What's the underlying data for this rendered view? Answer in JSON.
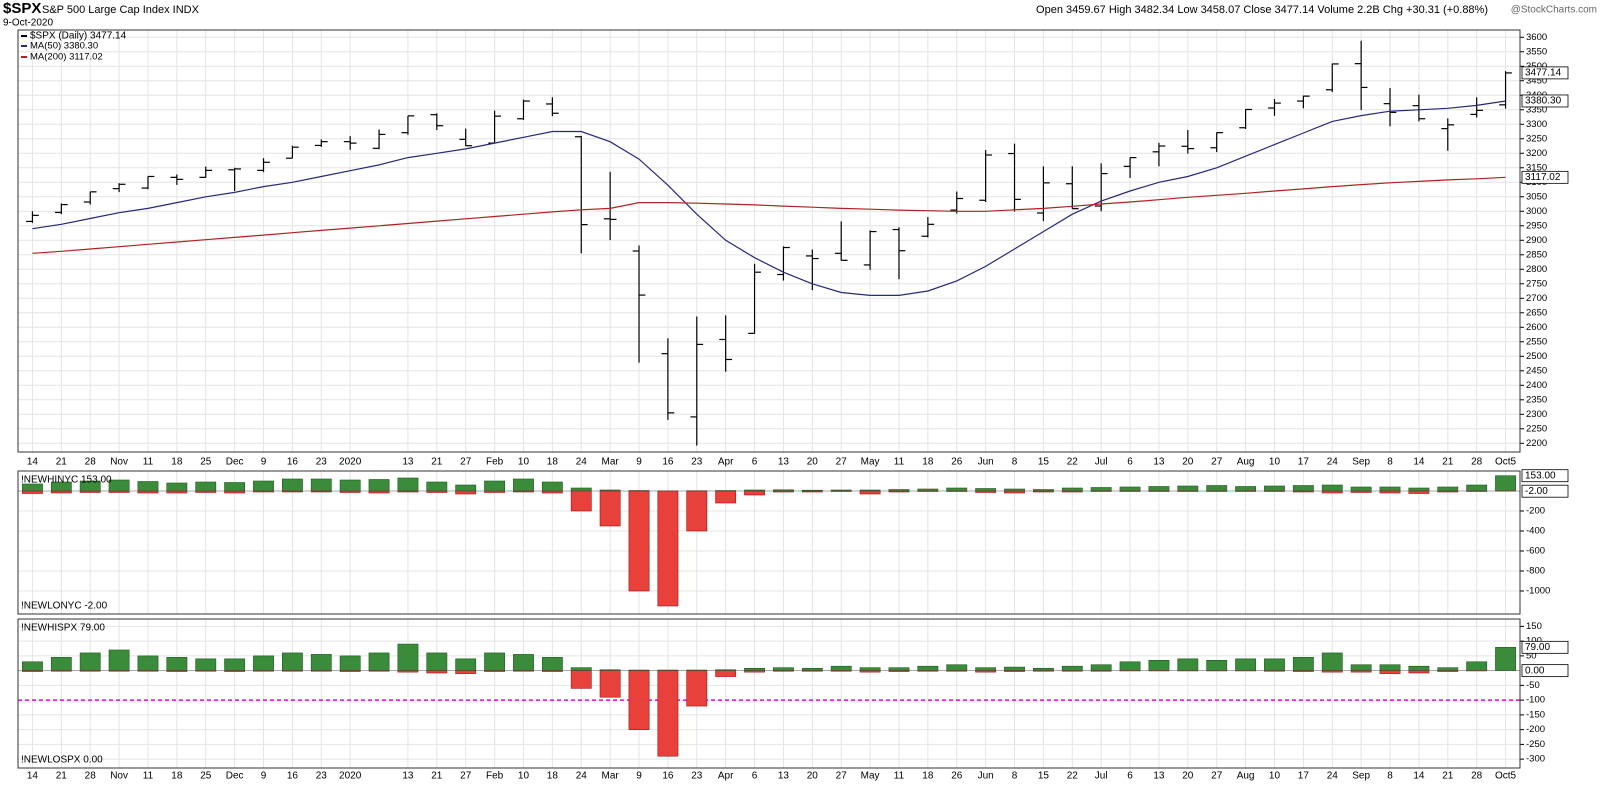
{
  "header": {
    "symbol": "$SPX",
    "title": "S&P 500 Large Cap Index INDX",
    "date": "9-Oct-2020",
    "quote": "Open 3459.67 High 3482.34 Low 3458.07 Close 3477.14 Volume 2.2B Chg +30.31 (+0.88%)",
    "brand": "@StockCharts.com"
  },
  "chart_data": [
    {
      "type": "ohlc",
      "price_name": "$SPX (Daily) 3477.14",
      "color": "#000000",
      "categories": [
        "14",
        "21",
        "28",
        "Nov",
        "11",
        "18",
        "25",
        "Dec",
        "9",
        "16",
        "23",
        "2020",
        null,
        "13",
        "21",
        "27",
        "Feb",
        "10",
        "18",
        "24",
        "Mar",
        "9",
        "16",
        "23",
        "Apr",
        "6",
        "13",
        "20",
        "27",
        "May",
        "11",
        "18",
        "26",
        "Jun",
        "8",
        "15",
        "22",
        "Jul",
        "6",
        "13",
        "20",
        "27",
        "Aug",
        "10",
        "17",
        "24",
        "Sep",
        "8",
        "14",
        "21",
        "28",
        "Oct5"
      ],
      "open": [
        2965,
        2996,
        3032,
        3078,
        3080,
        3117,
        3117,
        3143,
        3141,
        3183,
        3227,
        3240,
        3217,
        3271,
        3333,
        3248,
        3235,
        3319,
        3370,
        3257,
        2974,
        2863,
        2509,
        2291,
        2558,
        2579,
        2782,
        2846,
        2855,
        2815,
        2937,
        2914,
        3004,
        3038,
        3199,
        2994,
        3095,
        3018,
        3155,
        3205,
        3224,
        3219,
        3288,
        3356,
        3380,
        3419,
        3509,
        3371,
        3364,
        3285,
        3334,
        3367
      ],
      "high": [
        3000,
        3027,
        3067,
        3097,
        3120,
        3127,
        3154,
        3150,
        3183,
        3226,
        3248,
        3259,
        3282,
        3329,
        3338,
        3285,
        3347,
        3385,
        3393,
        3260,
        3136,
        2882,
        2562,
        2637,
        2641,
        2819,
        2879,
        2868,
        2965,
        2934,
        2945,
        2980,
        3068,
        3211,
        3233,
        3155,
        3155,
        3165,
        3185,
        3236,
        3280,
        3272,
        3352,
        3387,
        3399,
        3509,
        3588,
        3425,
        3402,
        3320,
        3393,
        3483
      ],
      "low": [
        2960,
        2990,
        3023,
        3066,
        3076,
        3091,
        3116,
        3070,
        3135,
        3183,
        3222,
        3212,
        3214,
        3264,
        3280,
        3225,
        3235,
        3315,
        3328,
        2855,
        2901,
        2478,
        2281,
        2192,
        2447,
        2579,
        2761,
        2728,
        2830,
        2798,
        2766,
        2910,
        2992,
        3032,
        2999,
        2966,
        3009,
        3000,
        3115,
        3155,
        3199,
        3204,
        3284,
        3329,
        3355,
        3411,
        3349,
        3293,
        3310,
        3209,
        3323,
        3354
      ],
      "close": [
        2986,
        3023,
        3067,
        3093,
        3120,
        3110,
        3141,
        3146,
        3169,
        3221,
        3240,
        3235,
        3265,
        3329,
        3295,
        3226,
        3328,
        3380,
        3338,
        2954,
        2972,
        2711,
        2305,
        2541,
        2489,
        2790,
        2875,
        2837,
        2831,
        2930,
        2864,
        2955,
        3044,
        3194,
        3041,
        3098,
        3009,
        3130,
        3185,
        3225,
        3216,
        3271,
        3351,
        3373,
        3397,
        3508,
        3427,
        3341,
        3319,
        3298,
        3348,
        3477
      ],
      "series": [
        {
          "name": "MA(50) 3380.30",
          "color": "#27287a",
          "values": [
            2940,
            2955,
            2975,
            2995,
            3010,
            3030,
            3050,
            3065,
            3085,
            3100,
            3120,
            3140,
            3160,
            3185,
            3200,
            3215,
            3235,
            3255,
            3275,
            3275,
            3240,
            3180,
            3090,
            2990,
            2900,
            2840,
            2790,
            2750,
            2720,
            2710,
            2710,
            2725,
            2760,
            2810,
            2870,
            2930,
            2990,
            3035,
            3070,
            3100,
            3120,
            3150,
            3190,
            3230,
            3270,
            3310,
            3330,
            3345,
            3350,
            3355,
            3365,
            3380.3
          ]
        },
        {
          "name": "MA(200) 3117.02",
          "color": "#b22222",
          "values": [
            2855,
            2862,
            2870,
            2878,
            2886,
            2894,
            2902,
            2910,
            2918,
            2926,
            2934,
            2942,
            2950,
            2958,
            2966,
            2974,
            2982,
            2990,
            2998,
            3005,
            3010,
            3030,
            3030,
            3028,
            3025,
            3022,
            3018,
            3014,
            3010,
            3007,
            3004,
            3002,
            3000,
            3000,
            3005,
            3010,
            3017,
            3025,
            3032,
            3040,
            3048,
            3055,
            3062,
            3070,
            3077,
            3085,
            3092,
            3098,
            3103,
            3108,
            3112,
            3117.02
          ]
        }
      ],
      "tags": [
        3477.14,
        {
          "value": 3380.3,
          "label": "3380.30"
        },
        3117.02
      ],
      "ylim": [
        2170,
        3625
      ],
      "yticks": [
        2200,
        2250,
        2300,
        2350,
        2400,
        2450,
        2500,
        2550,
        2600,
        2650,
        2700,
        2750,
        2800,
        2850,
        2900,
        2950,
        3000,
        3050,
        3100,
        3150,
        3200,
        3250,
        3300,
        3350,
        3400,
        3450,
        3500,
        3550,
        3600
      ],
      "grid": true
    },
    {
      "type": "hist",
      "series": [
        {
          "name": "!NEWHINYC 153.00",
          "color": "#3a8c3a",
          "values": [
            70,
            90,
            100,
            110,
            95,
            80,
            90,
            85,
            100,
            120,
            120,
            110,
            115,
            130,
            90,
            60,
            100,
            120,
            90,
            30,
            10,
            5,
            2,
            3,
            5,
            10,
            12,
            8,
            10,
            10,
            15,
            20,
            30,
            25,
            20,
            15,
            30,
            35,
            40,
            45,
            50,
            55,
            45,
            50,
            55,
            60,
            40,
            40,
            30,
            40,
            60,
            153
          ]
        },
        {
          "name": "!NEWLONYC -2.00",
          "color": "#e8413c",
          "values": [
            -25,
            -20,
            -15,
            -15,
            -20,
            -20,
            -15,
            -20,
            -10,
            -10,
            -10,
            -15,
            -20,
            -10,
            -15,
            -30,
            -15,
            -10,
            -20,
            -200,
            -350,
            -1000,
            -1150,
            -400,
            -120,
            -40,
            -10,
            -10,
            -5,
            -30,
            -10,
            -5,
            -5,
            -15,
            -20,
            -10,
            -10,
            -5,
            -5,
            -5,
            -5,
            -5,
            -5,
            -5,
            -10,
            -20,
            -15,
            -20,
            -25,
            -10,
            -5,
            -2
          ]
        }
      ],
      "tags": [
        {
          "value": 153,
          "label": "153.00"
        },
        {
          "value": -2,
          "label": "-2.00"
        }
      ],
      "ylim": [
        -1230,
        200
      ],
      "yticks": [
        -1000,
        -800,
        -600,
        -400,
        -200
      ],
      "grid": true
    },
    {
      "type": "hist",
      "series": [
        {
          "name": "!NEWHISPX 79.00",
          "color": "#3a8c3a",
          "values": [
            30,
            45,
            60,
            70,
            50,
            45,
            40,
            40,
            50,
            60,
            55,
            50,
            60,
            90,
            60,
            40,
            60,
            55,
            45,
            10,
            3,
            2,
            2,
            2,
            3,
            8,
            10,
            8,
            15,
            10,
            10,
            15,
            20,
            10,
            12,
            8,
            15,
            20,
            30,
            35,
            40,
            35,
            40,
            40,
            45,
            60,
            20,
            20,
            15,
            10,
            30,
            79
          ]
        },
        {
          "name": "!NEWLOSPX 0.00",
          "color": "#e8413c",
          "values": [
            -3,
            -2,
            -2,
            -2,
            -2,
            -3,
            -2,
            -3,
            -2,
            -2,
            -2,
            -3,
            -2,
            -5,
            -8,
            -10,
            -3,
            -2,
            -3,
            -60,
            -90,
            -200,
            -290,
            -120,
            -20,
            -5,
            -2,
            -2,
            -2,
            -5,
            -3,
            -2,
            -2,
            -5,
            -3,
            -2,
            -2,
            -2,
            -1,
            -1,
            -1,
            -1,
            -1,
            -2,
            -3,
            -5,
            -5,
            -10,
            -8,
            -3,
            -1,
            0
          ]
        }
      ],
      "tags": [
        {
          "value": 79,
          "label": "79.00"
        },
        {
          "value": 0,
          "label": "0.00"
        }
      ],
      "ref_line": {
        "value": -100,
        "color": "#e600e6"
      },
      "ylim": [
        -330,
        175
      ],
      "yticks": [
        150,
        100,
        50,
        -50,
        -100,
        -150,
        -200,
        -250,
        -300
      ],
      "grid": true
    }
  ]
}
